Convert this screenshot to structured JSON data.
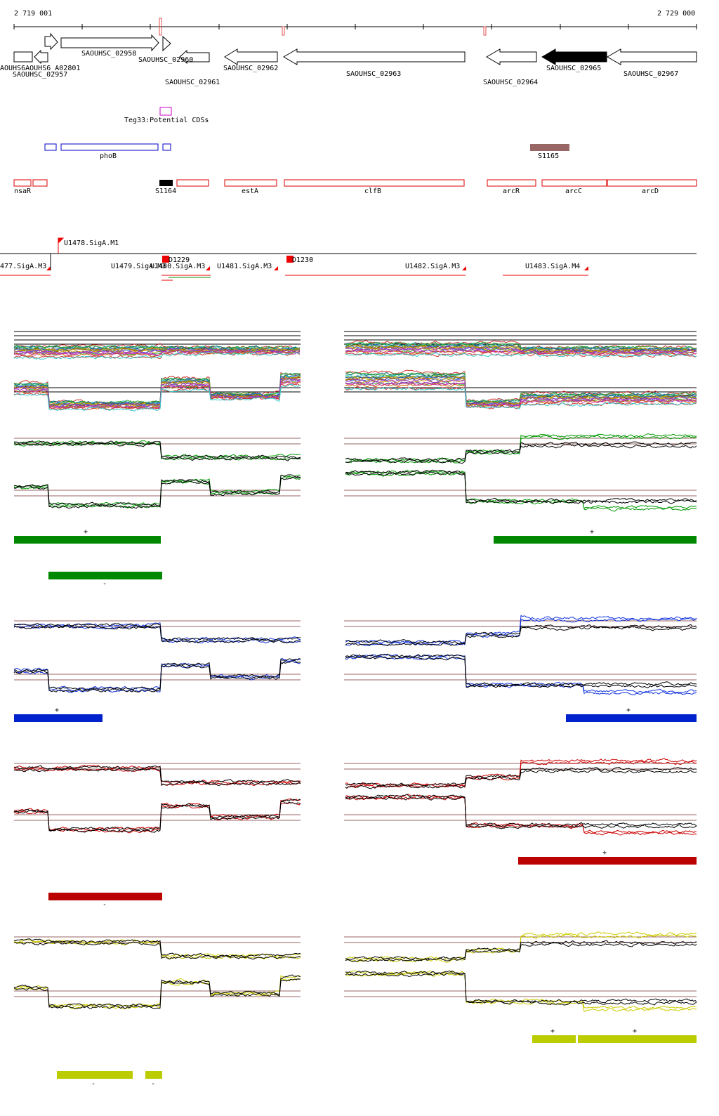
{
  "coordinates": {
    "start_label": "2 719 001",
    "end_label": "2 729 000"
  },
  "colors": {
    "gene_outline": "#000000",
    "gene_selected": "#000000",
    "potential_cds": "#cc00cc",
    "phob": "#0000cc",
    "s1165": "#996666",
    "rna_box": "#dd0000",
    "s1164": "#000000",
    "promoter": "#ee0000",
    "green": "#008800",
    "blue": "#0022cc",
    "red": "#bb0000",
    "yellow": "#bbcc00"
  },
  "genes": [
    {
      "id": "SAOUHSC_02957",
      "label": "SAOUHSC_02957"
    },
    {
      "id": "SAOUHSC_A02801",
      "label": "AOUHS6AOUHS6_A02801"
    },
    {
      "id": "SAOUHSC_02958",
      "label": "SAOUHSC_02958"
    },
    {
      "id": "SAOUHSC_02960",
      "label": "SAOUHSC_02960"
    },
    {
      "id": "SAOUHSC_02961",
      "label": "SAOUHSC_02961"
    },
    {
      "id": "SAOUHSC_02962",
      "label": "SAOUHSC_02962"
    },
    {
      "id": "SAOUHSC_02963",
      "label": "SAOUHSC_02963"
    },
    {
      "id": "SAOUHSC_02964",
      "label": "SAOUHSC_02964"
    },
    {
      "id": "SAOUHSC_02965",
      "label": "SAOUHSC_02965"
    },
    {
      "id": "SAOUHSC_02967",
      "label": "SAOUHSC_02967"
    }
  ],
  "features": {
    "potential_cds": "Teg33:Potential CDSs",
    "phob": "phoB",
    "s1165": "S1165",
    "rna": [
      {
        "label": "nsaR"
      },
      {
        "label": "S1164"
      },
      {
        "label": "estA"
      },
      {
        "label": "clfB"
      },
      {
        "label": "arcR"
      },
      {
        "label": "arcC"
      },
      {
        "label": "arcD"
      }
    ]
  },
  "promoters": {
    "labels": [
      "U1478.SigA.M1",
      "477.SigA.M3",
      "U1479.SigA.M3",
      "D1229",
      "U1480.SigA.M3",
      "U1481.SigA.M3",
      "D1230",
      "U1482.SigA.M3",
      "U1483.SigA.M4"
    ]
  },
  "panels": [
    {
      "name": "green",
      "left_plus": "+",
      "left_minus": "-",
      "right_plus": "+"
    },
    {
      "name": "blue",
      "left_plus": "+",
      "right_plus": "+"
    },
    {
      "name": "red",
      "left_minus": "-",
      "right_plus": "+"
    },
    {
      "name": "yellow",
      "left_minus_1": "-",
      "left_minus_2": "-",
      "right_plus_1": "+",
      "right_plus_2": "+"
    }
  ]
}
